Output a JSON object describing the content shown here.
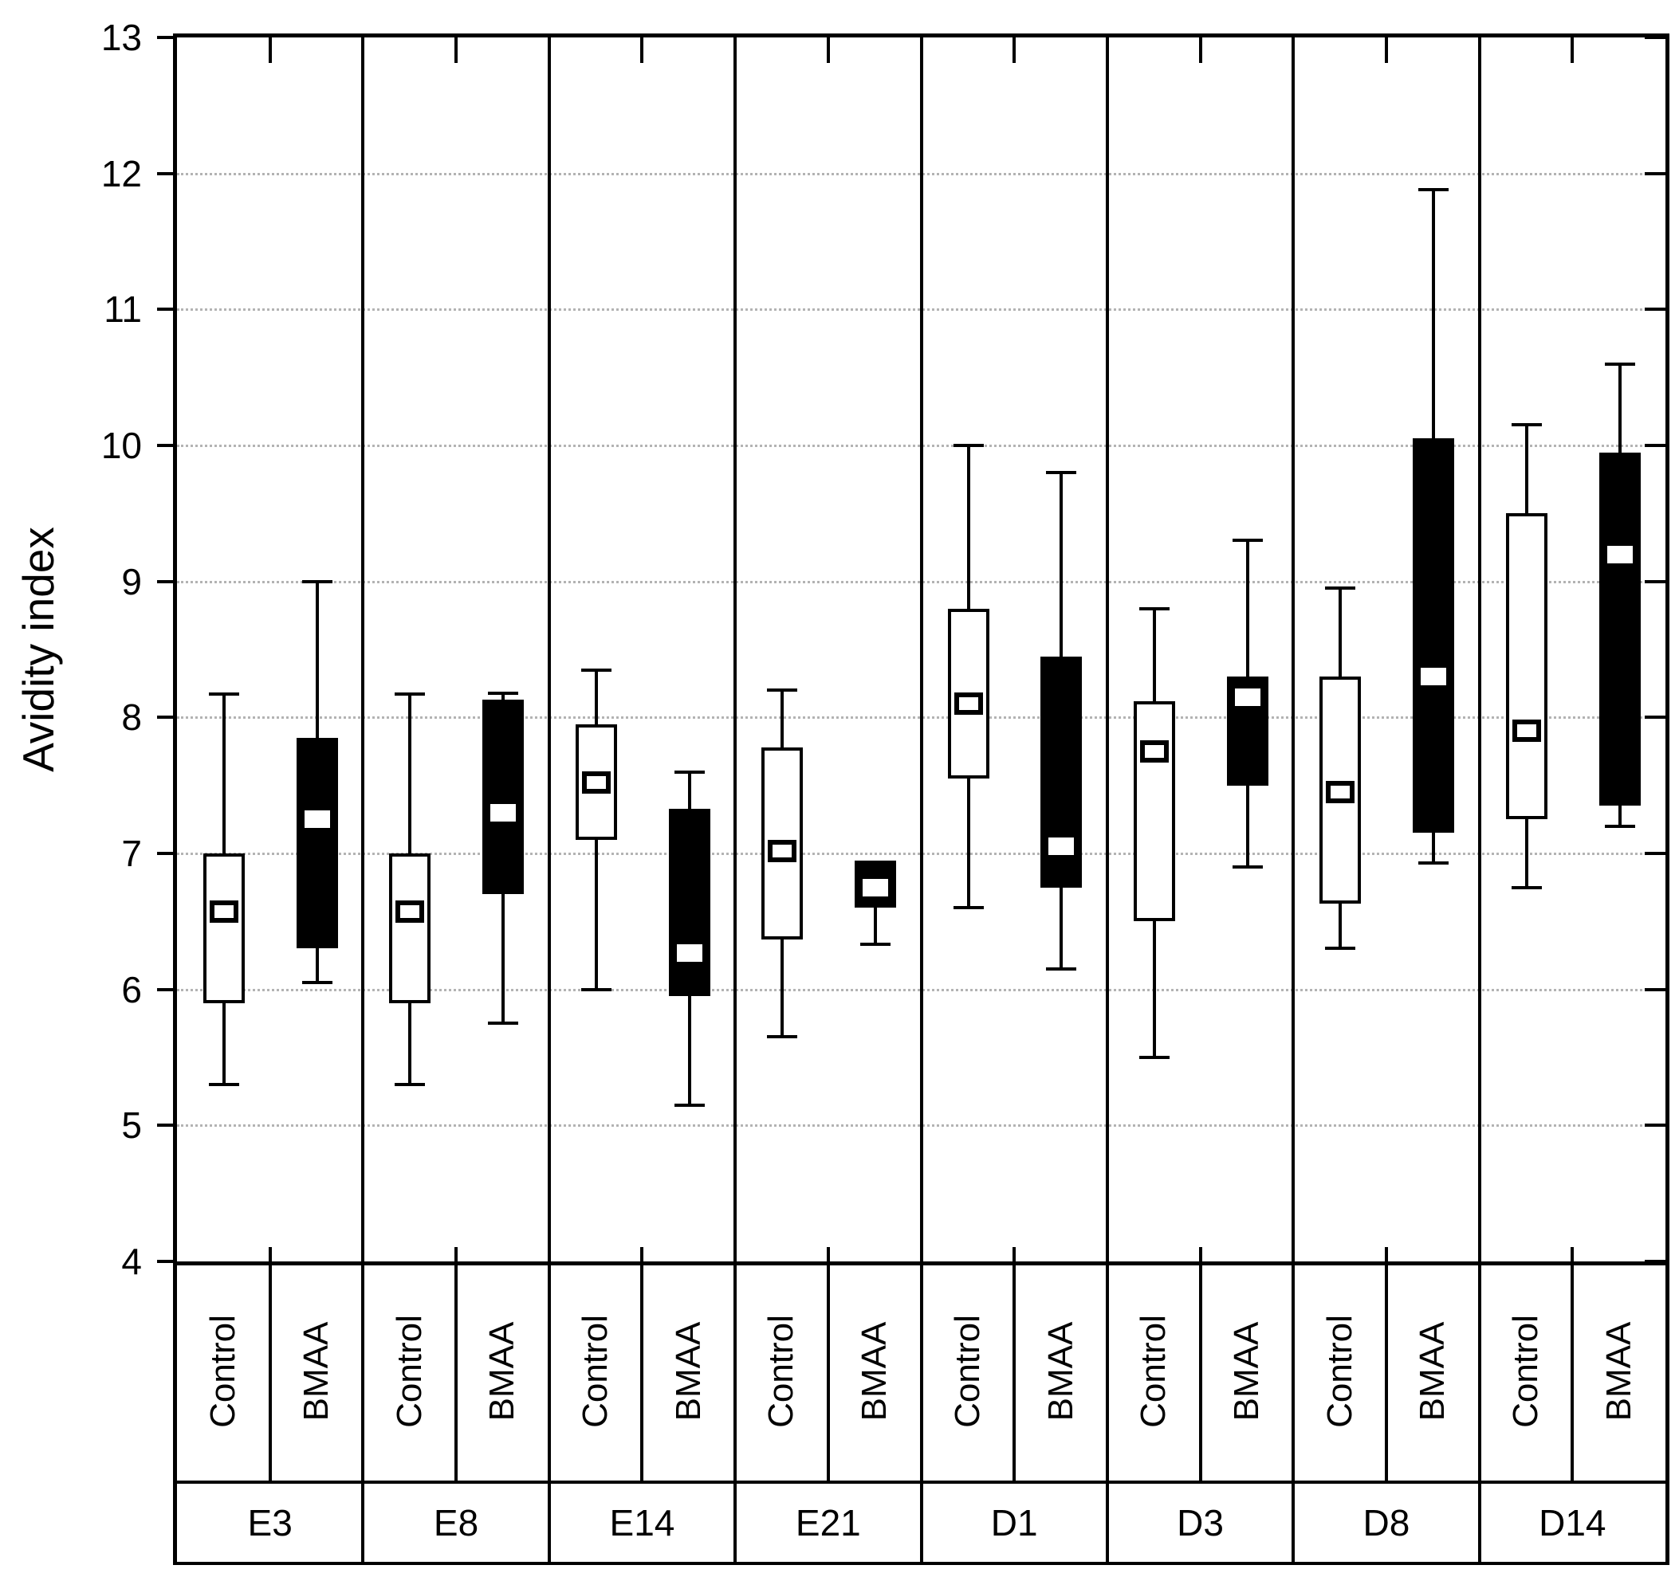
{
  "figure": {
    "background": "#ffffff"
  },
  "y_axis": {
    "label": "Avidity index",
    "ticks": [
      13,
      12,
      11,
      10,
      9,
      8,
      7,
      6,
      5,
      4
    ],
    "min": 4,
    "max": 13
  },
  "series_labels": [
    "Control",
    "BMAA"
  ],
  "colors": {
    "control_box_fill": "#ffffff",
    "bmaa_box_fill": "#000000",
    "line": "#000000",
    "gridline": "#b3b3b3"
  },
  "chart_data": {
    "type": "box",
    "title": "",
    "xlabel": "",
    "ylabel": "Avidity index",
    "ylim": [
      4,
      13
    ],
    "grid": "horizontal dotted lines at integer values 5-12",
    "legend_position": "bottom axis strip (Control / BMAA under each group)",
    "categories": [
      "E3",
      "E8",
      "E14",
      "E21",
      "D1",
      "D3",
      "D8",
      "D14"
    ],
    "series": [
      {
        "name": "Control",
        "style": "open white box, square mean marker",
        "stats": [
          {
            "whisker_low": 5.3,
            "q1": 5.9,
            "mean": 6.57,
            "q3": 7.0,
            "whisker_high": 8.17
          },
          {
            "whisker_low": 5.3,
            "q1": 5.9,
            "mean": 6.57,
            "q3": 7.0,
            "whisker_high": 8.17
          },
          {
            "whisker_low": 6.0,
            "q1": 7.1,
            "mean": 7.52,
            "q3": 7.95,
            "whisker_high": 8.35
          },
          {
            "whisker_low": 5.65,
            "q1": 6.37,
            "mean": 7.02,
            "q3": 7.78,
            "whisker_high": 8.2
          },
          {
            "whisker_low": 6.6,
            "q1": 7.55,
            "mean": 8.1,
            "q3": 8.8,
            "whisker_high": 10.0
          },
          {
            "whisker_low": 5.5,
            "q1": 6.5,
            "mean": 7.75,
            "q3": 8.12,
            "whisker_high": 8.8
          },
          {
            "whisker_low": 6.3,
            "q1": 6.63,
            "mean": 7.45,
            "q3": 8.3,
            "whisker_high": 8.95
          },
          {
            "whisker_low": 6.75,
            "q1": 7.25,
            "mean": 7.9,
            "q3": 9.5,
            "whisker_high": 10.15
          }
        ]
      },
      {
        "name": "BMAA",
        "style": "solid black box, white dash mean marker",
        "stats": [
          {
            "whisker_low": 6.05,
            "q1": 6.3,
            "mean": 7.25,
            "q3": 7.85,
            "whisker_high": 9.0
          },
          {
            "whisker_low": 5.75,
            "q1": 6.7,
            "mean": 7.3,
            "q3": 8.13,
            "whisker_high": 8.18
          },
          {
            "whisker_low": 5.15,
            "q1": 5.95,
            "mean": 6.27,
            "q3": 7.33,
            "whisker_high": 7.6
          },
          {
            "whisker_low": 6.33,
            "q1": 6.6,
            "mean": 6.75,
            "q3": 6.95,
            "whisker_high": 6.95
          },
          {
            "whisker_low": 6.15,
            "q1": 6.75,
            "mean": 7.05,
            "q3": 8.45,
            "whisker_high": 9.8
          },
          {
            "whisker_low": 6.9,
            "q1": 7.5,
            "mean": 8.15,
            "q3": 8.3,
            "whisker_high": 9.3
          },
          {
            "whisker_low": 6.93,
            "q1": 7.15,
            "mean": 8.3,
            "q3": 10.05,
            "whisker_high": 11.88
          },
          {
            "whisker_low": 7.2,
            "q1": 7.35,
            "mean": 9.2,
            "q3": 9.95,
            "whisker_high": 10.6
          }
        ]
      }
    ]
  }
}
